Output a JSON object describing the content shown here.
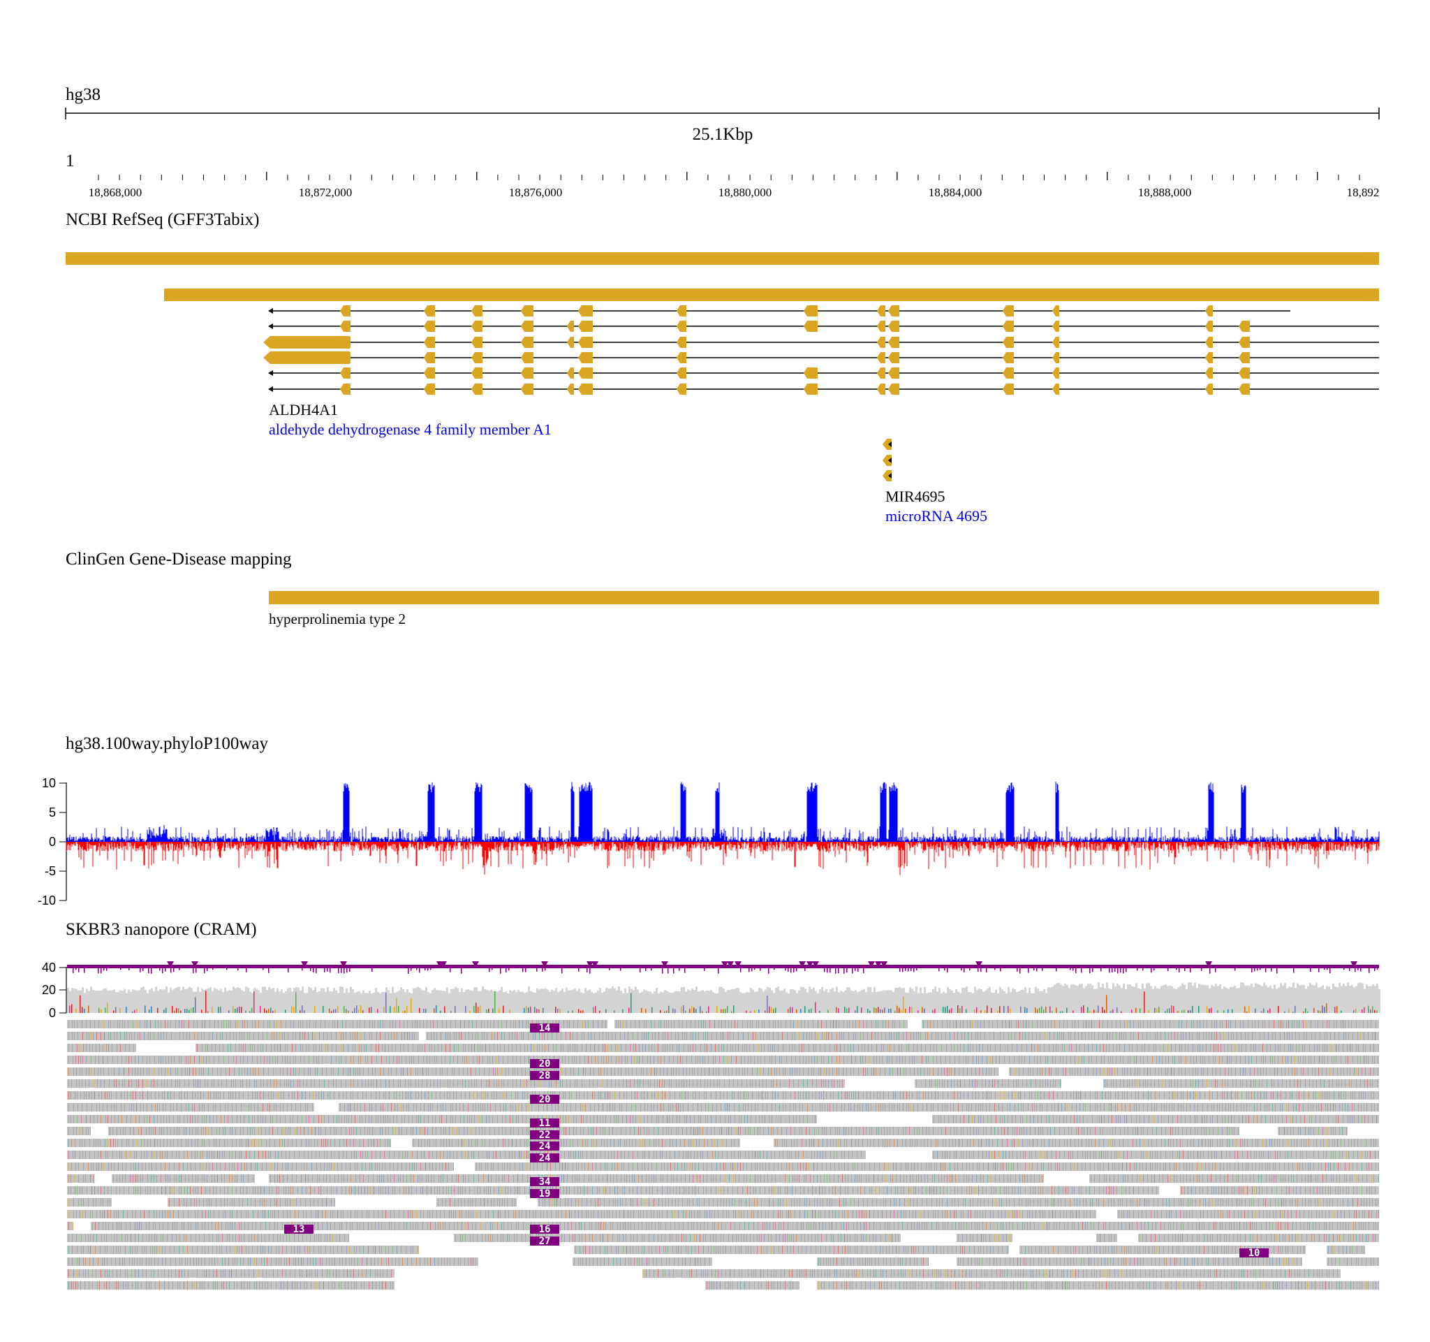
{
  "assembly": "hg38",
  "ruler": {
    "span_label": "25.1Kbp",
    "refname": "1",
    "start": 18866700,
    "end": 18891800,
    "tick_labels": [
      "18,868,000",
      "18,872,000",
      "18,876,000",
      "18,880,000",
      "18,884,000",
      "18,888,000",
      "18,892"
    ]
  },
  "tracks": {
    "refseq": {
      "title": "NCBI RefSeq (GFF3Tabix)",
      "feature_color": "#daa520",
      "genes": [
        {
          "name": "ALDH4A1",
          "description": "aldehyde dehydrogenase 4 family member A1"
        },
        {
          "name": "MIR4695",
          "description": "microRNA 4695"
        }
      ]
    },
    "clingen": {
      "title": "ClinGen Gene-Disease mapping",
      "feature_label": "hyperprolinemia type 2"
    },
    "phylop": {
      "title": "hg38.100way.phyloP100way",
      "y_ticks": [
        "10",
        "5",
        "0",
        "-5",
        "-10"
      ],
      "ylim": [
        -10,
        10
      ],
      "positive_color": "#0000ff",
      "negative_color": "#ff0000"
    },
    "nanopore": {
      "title": "SKBR3 nanopore (CRAM)",
      "coverage_ticks": [
        "40",
        "20",
        "0"
      ],
      "ylim": [
        0,
        40
      ],
      "insertion_color": "#800080",
      "insertion_badges": [
        "14",
        "20",
        "28",
        "20",
        "11",
        "22",
        "24",
        "24",
        "34",
        "19",
        "13",
        "16",
        "27",
        "10"
      ]
    }
  }
}
